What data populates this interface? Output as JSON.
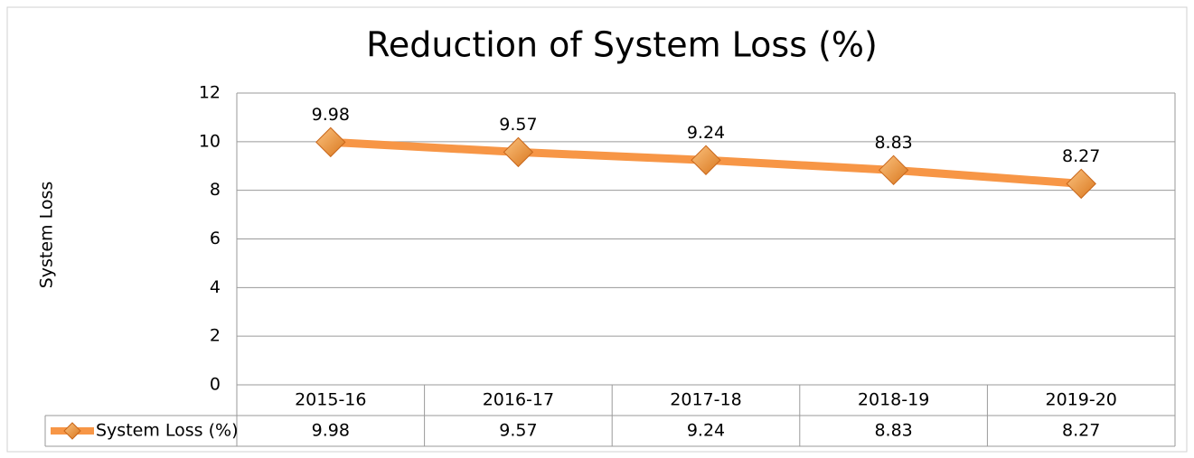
{
  "chart_data": {
    "type": "line",
    "title": "Reduction of System Loss (%)",
    "y_label": "System Loss",
    "categories": [
      "2015-16",
      "2016-17",
      "2017-18",
      "2018-19",
      "2019-20"
    ],
    "series": [
      {
        "name": "System Loss (%)",
        "color": "#f79646",
        "values": [
          9.98,
          9.57,
          9.24,
          8.83,
          8.27
        ]
      }
    ],
    "ylim": [
      0,
      12
    ],
    "yticks": [
      0,
      2,
      4,
      6,
      8,
      10,
      12
    ],
    "grid": true
  }
}
